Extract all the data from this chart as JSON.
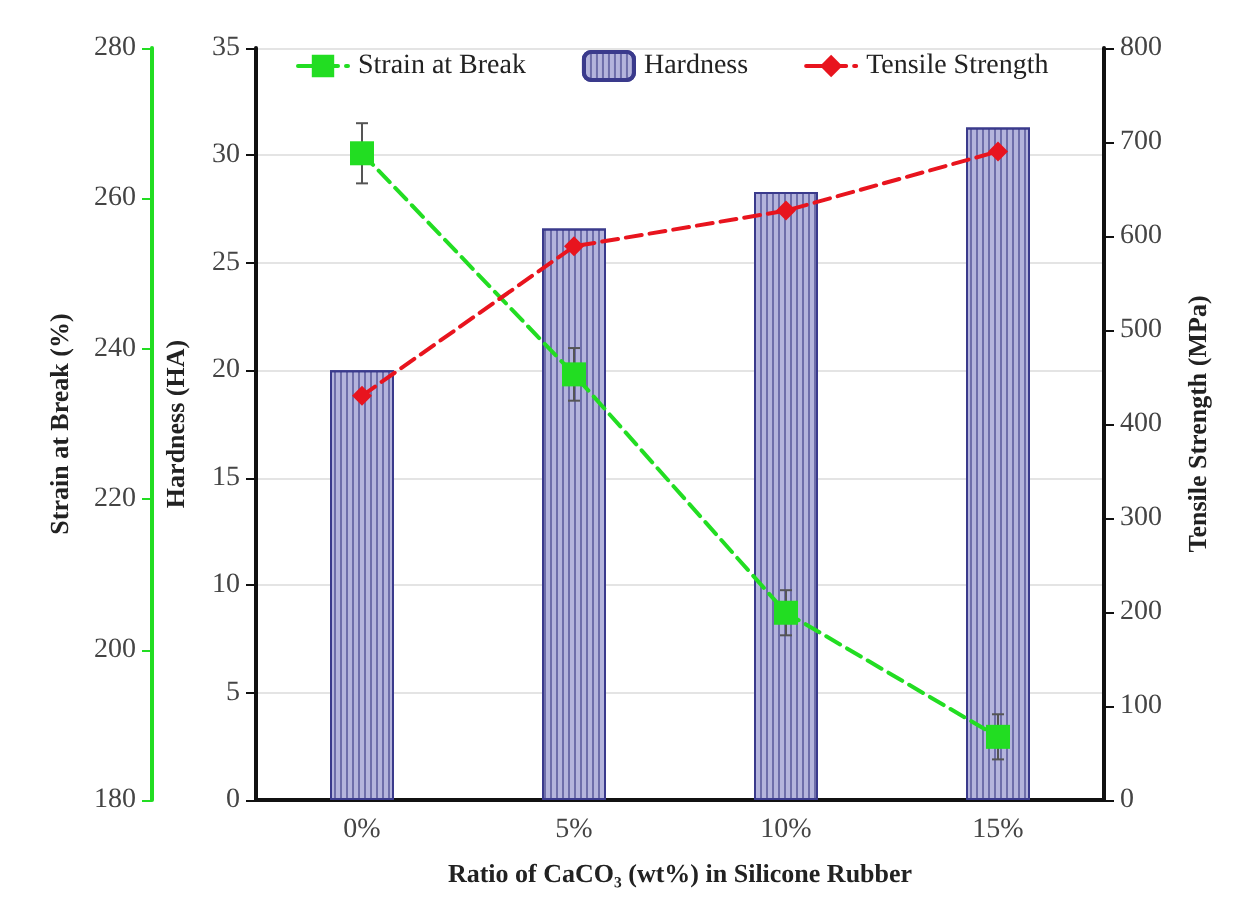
{
  "chart_data": {
    "type": "bar",
    "xlabel": "Ratio of CaCO₃ (wt%) in Silicone Rubber",
    "ylabel": "Hardness (HA)",
    "y2label": "Tensile Strength (MPa)",
    "y3label": "Strain at Break (%)",
    "categories": [
      "0%",
      "5%",
      "10%",
      "15%"
    ],
    "series": [
      {
        "name": "Strain at Break",
        "type": "line",
        "axis": "y3",
        "color": "#22dd22",
        "marker": "square",
        "line_style": "dashed",
        "values": [
          266,
          236.6,
          204.9,
          188.4
        ],
        "errors": [
          4,
          3.5,
          3,
          3
        ]
      },
      {
        "name": "Hardness",
        "color": "#b4b4dc",
        "values": [
          20,
          26.6,
          28.3,
          31.3
        ]
      },
      {
        "name": "Tensile Strength",
        "type": "line",
        "axis": "y2",
        "color": "#e8141e",
        "marker": "diamond",
        "line_style": "dashed",
        "values": [
          430,
          589,
          627,
          690
        ]
      }
    ],
    "ylim": [
      0,
      35
    ],
    "yticks": [
      0,
      5,
      10,
      15,
      20,
      25,
      30,
      35
    ],
    "y2lim": [
      0,
      800
    ],
    "y2ticks": [
      0,
      100,
      200,
      300,
      400,
      500,
      600,
      700,
      800
    ],
    "y3lim": [
      180,
      280
    ],
    "y3ticks": [
      180,
      200,
      220,
      240,
      260,
      280
    ],
    "grid": "y",
    "legend": "top"
  }
}
